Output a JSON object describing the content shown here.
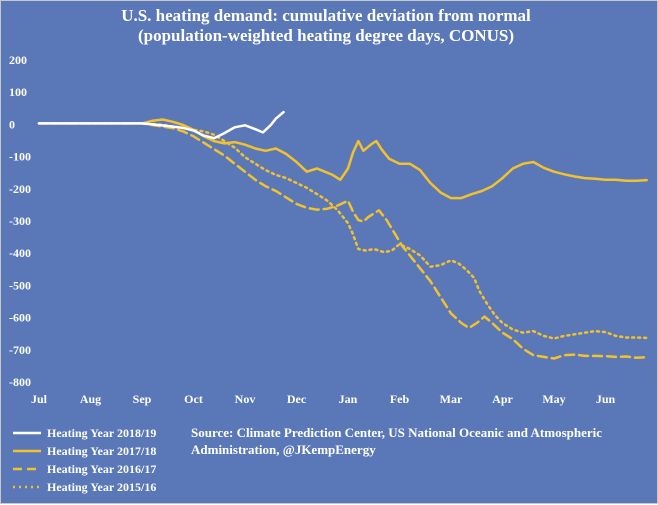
{
  "chart_data": {
    "type": "line",
    "title": "U.S. heating demand: cumulative deviation from normal",
    "subtitle": "(population-weighted heating degree days, CONUS)",
    "xlabel": "",
    "ylabel": "",
    "x_ticks": [
      "Jul",
      "Aug",
      "Sep",
      "Oct",
      "Nov",
      "Dec",
      "Jan",
      "Feb",
      "Mar",
      "Apr",
      "May",
      "Jun"
    ],
    "x_range": [
      0,
      12
    ],
    "ylim": [
      -800,
      200
    ],
    "y_ticks": [
      200,
      100,
      0,
      -100,
      -200,
      -300,
      -400,
      -500,
      -600,
      -700,
      -800
    ],
    "grid": false,
    "legend_position": "bottom-left",
    "source_text_line1": "Source: Climate Prediction Center, US National Oceanic and Atmospheric",
    "source_text_line2": "Administration, @JKempEnergy",
    "colors": {
      "background": "#5a78b8",
      "white": "#ffffff",
      "gold": "#f2c12e"
    },
    "series": [
      {
        "name": "Heating Year 2018/19",
        "style": "solid",
        "color": "#ffffff",
        "points": [
          [
            0,
            0
          ],
          [
            2,
            0
          ],
          [
            2.2,
            -3
          ],
          [
            2.5,
            -8
          ],
          [
            2.8,
            -14
          ],
          [
            3.0,
            -22
          ],
          [
            3.2,
            -38
          ],
          [
            3.4,
            -46
          ],
          [
            3.6,
            -30
          ],
          [
            3.8,
            -12
          ],
          [
            4.0,
            -6
          ],
          [
            4.2,
            -18
          ],
          [
            4.35,
            -28
          ],
          [
            4.5,
            -5
          ],
          [
            4.6,
            15
          ],
          [
            4.75,
            35
          ]
        ]
      },
      {
        "name": "Heating Year 2017/18",
        "style": "solid",
        "color": "#f2c12e",
        "points": [
          [
            0,
            0
          ],
          [
            2,
            0
          ],
          [
            2.2,
            8
          ],
          [
            2.4,
            12
          ],
          [
            2.6,
            5
          ],
          [
            2.8,
            -5
          ],
          [
            3.0,
            -20
          ],
          [
            3.2,
            -40
          ],
          [
            3.4,
            -55
          ],
          [
            3.6,
            -62
          ],
          [
            3.8,
            -58
          ],
          [
            4.0,
            -66
          ],
          [
            4.2,
            -78
          ],
          [
            4.4,
            -85
          ],
          [
            4.6,
            -78
          ],
          [
            4.8,
            -95
          ],
          [
            5.0,
            -120
          ],
          [
            5.2,
            -150
          ],
          [
            5.4,
            -140
          ],
          [
            5.55,
            -150
          ],
          [
            5.7,
            -160
          ],
          [
            5.85,
            -175
          ],
          [
            6.0,
            -140
          ],
          [
            6.1,
            -90
          ],
          [
            6.2,
            -55
          ],
          [
            6.3,
            -85
          ],
          [
            6.45,
            -65
          ],
          [
            6.55,
            -55
          ],
          [
            6.65,
            -80
          ],
          [
            6.8,
            -110
          ],
          [
            7.0,
            -125
          ],
          [
            7.2,
            -125
          ],
          [
            7.4,
            -145
          ],
          [
            7.6,
            -185
          ],
          [
            7.8,
            -215
          ],
          [
            8.0,
            -232
          ],
          [
            8.2,
            -232
          ],
          [
            8.4,
            -220
          ],
          [
            8.6,
            -210
          ],
          [
            8.8,
            -195
          ],
          [
            9.0,
            -170
          ],
          [
            9.2,
            -140
          ],
          [
            9.4,
            -125
          ],
          [
            9.6,
            -120
          ],
          [
            9.8,
            -138
          ],
          [
            10.0,
            -150
          ],
          [
            10.2,
            -158
          ],
          [
            10.4,
            -165
          ],
          [
            10.6,
            -170
          ],
          [
            10.8,
            -172
          ],
          [
            11.0,
            -175
          ],
          [
            11.2,
            -175
          ],
          [
            11.4,
            -178
          ],
          [
            11.6,
            -178
          ],
          [
            11.8,
            -176
          ]
        ]
      },
      {
        "name": "Heating Year 2016/17",
        "style": "dashed",
        "color": "#f2c12e",
        "points": [
          [
            0,
            0
          ],
          [
            2,
            0
          ],
          [
            2.2,
            -5
          ],
          [
            2.4,
            -10
          ],
          [
            2.6,
            -15
          ],
          [
            2.8,
            -25
          ],
          [
            3.0,
            -40
          ],
          [
            3.2,
            -60
          ],
          [
            3.4,
            -80
          ],
          [
            3.6,
            -100
          ],
          [
            3.8,
            -125
          ],
          [
            4.0,
            -150
          ],
          [
            4.2,
            -175
          ],
          [
            4.4,
            -195
          ],
          [
            4.6,
            -210
          ],
          [
            4.8,
            -230
          ],
          [
            5.0,
            -250
          ],
          [
            5.2,
            -262
          ],
          [
            5.4,
            -268
          ],
          [
            5.6,
            -265
          ],
          [
            5.8,
            -255
          ],
          [
            6.0,
            -240
          ],
          [
            6.1,
            -275
          ],
          [
            6.2,
            -300
          ],
          [
            6.3,
            -305
          ],
          [
            6.4,
            -290
          ],
          [
            6.5,
            -280
          ],
          [
            6.6,
            -270
          ],
          [
            6.75,
            -300
          ],
          [
            6.9,
            -340
          ],
          [
            7.05,
            -380
          ],
          [
            7.2,
            -410
          ],
          [
            7.4,
            -450
          ],
          [
            7.6,
            -490
          ],
          [
            7.8,
            -540
          ],
          [
            8.0,
            -590
          ],
          [
            8.2,
            -620
          ],
          [
            8.35,
            -635
          ],
          [
            8.5,
            -620
          ],
          [
            8.65,
            -600
          ],
          [
            8.8,
            -620
          ],
          [
            9.0,
            -650
          ],
          [
            9.2,
            -670
          ],
          [
            9.4,
            -700
          ],
          [
            9.6,
            -720
          ],
          [
            9.8,
            -725
          ],
          [
            10.0,
            -730
          ],
          [
            10.2,
            -720
          ],
          [
            10.4,
            -718
          ],
          [
            10.6,
            -722
          ],
          [
            10.8,
            -722
          ],
          [
            11.0,
            -723
          ],
          [
            11.2,
            -725
          ],
          [
            11.4,
            -724
          ],
          [
            11.6,
            -728
          ],
          [
            11.8,
            -726
          ]
        ]
      },
      {
        "name": "Heating Year 2015/16",
        "style": "dotted",
        "color": "#f2c12e",
        "points": [
          [
            0,
            0
          ],
          [
            2,
            0
          ],
          [
            2.2,
            -2
          ],
          [
            2.4,
            -4
          ],
          [
            2.6,
            -10
          ],
          [
            2.8,
            -15
          ],
          [
            3.0,
            -20
          ],
          [
            3.2,
            -25
          ],
          [
            3.4,
            -35
          ],
          [
            3.6,
            -55
          ],
          [
            3.8,
            -75
          ],
          [
            4.0,
            -105
          ],
          [
            4.2,
            -125
          ],
          [
            4.4,
            -145
          ],
          [
            4.6,
            -160
          ],
          [
            4.8,
            -170
          ],
          [
            5.0,
            -185
          ],
          [
            5.2,
            -200
          ],
          [
            5.4,
            -220
          ],
          [
            5.6,
            -240
          ],
          [
            5.8,
            -270
          ],
          [
            6.0,
            -310
          ],
          [
            6.1,
            -345
          ],
          [
            6.2,
            -390
          ],
          [
            6.35,
            -395
          ],
          [
            6.5,
            -390
          ],
          [
            6.7,
            -400
          ],
          [
            6.85,
            -395
          ],
          [
            7.0,
            -375
          ],
          [
            7.2,
            -390
          ],
          [
            7.4,
            -410
          ],
          [
            7.6,
            -445
          ],
          [
            7.8,
            -440
          ],
          [
            8.0,
            -425
          ],
          [
            8.15,
            -435
          ],
          [
            8.3,
            -455
          ],
          [
            8.45,
            -480
          ],
          [
            8.55,
            -520
          ],
          [
            8.7,
            -560
          ],
          [
            8.85,
            -595
          ],
          [
            9.0,
            -620
          ],
          [
            9.2,
            -640
          ],
          [
            9.4,
            -650
          ],
          [
            9.6,
            -645
          ],
          [
            9.8,
            -660
          ],
          [
            10.0,
            -668
          ],
          [
            10.2,
            -660
          ],
          [
            10.4,
            -655
          ],
          [
            10.6,
            -650
          ],
          [
            10.8,
            -645
          ],
          [
            11.0,
            -648
          ],
          [
            11.2,
            -660
          ],
          [
            11.4,
            -665
          ],
          [
            11.6,
            -665
          ],
          [
            11.8,
            -666
          ]
        ]
      }
    ]
  }
}
